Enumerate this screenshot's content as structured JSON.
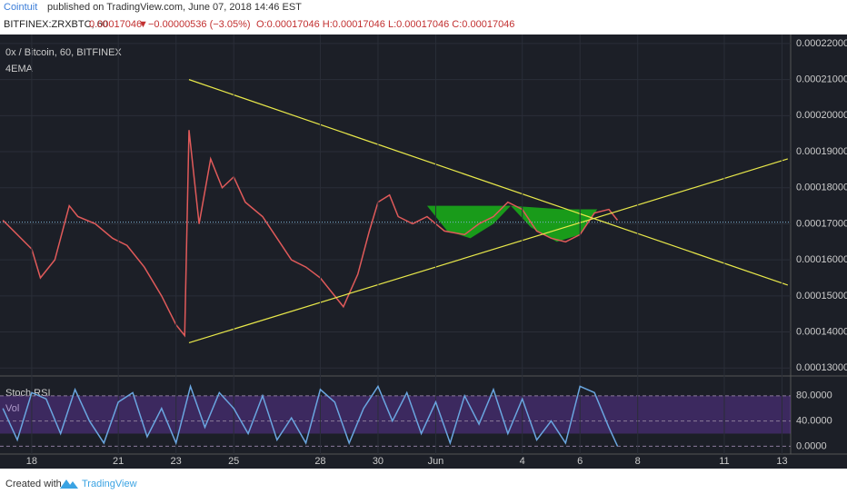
{
  "header": {
    "author": "Cointuit",
    "published": "published on TradingView.com, June 07, 2018 14:46 EST",
    "symbol": "BITFINEX:ZRXBTC, 60",
    "arrow": "▼",
    "change": "−0.00000536 (−3.05%)",
    "ohlc": "O:0.00017046 H:0.00017046 L:0.00017046 C:0.00017046"
  },
  "footer": {
    "created": "Created with",
    "brand": "TradingView"
  },
  "chart_data": [
    {
      "type": "line",
      "title": "0x / Bitcoin, 60, BITFINEX",
      "subtitle": "4EMA",
      "color": "#e05a5a",
      "x": [
        -1,
        0,
        0.3,
        0.8,
        1.3,
        1.6,
        2.2,
        2.8,
        3.3,
        3.9,
        4.5,
        5.0,
        5.3,
        5.45,
        5.8,
        6.2,
        6.6,
        7.0,
        7.4,
        8.0,
        8.5,
        9.0,
        9.5,
        10.0,
        10.5,
        10.8,
        11.3,
        11.7,
        12.0,
        12.4,
        12.7,
        13.2,
        13.7,
        14.3,
        15.0,
        15.5,
        16.0,
        16.5,
        17.0,
        17.5,
        18.0,
        18.5,
        19.0,
        19.5,
        20.0,
        20.3
      ],
      "values": [
        0.000171,
        0.000163,
        0.000155,
        0.00016,
        0.000175,
        0.000172,
        0.00017,
        0.000166,
        0.000164,
        0.000158,
        0.00015,
        0.000142,
        0.000139,
        0.000196,
        0.00017,
        0.000188,
        0.00018,
        0.000183,
        0.000176,
        0.000172,
        0.000166,
        0.00016,
        0.000158,
        0.000155,
        0.00015,
        0.000147,
        0.000156,
        0.000168,
        0.000176,
        0.000178,
        0.000172,
        0.00017,
        0.000172,
        0.000168,
        0.000167,
        0.00017,
        0.000172,
        0.000176,
        0.000174,
        0.000168,
        0.000166,
        0.000165,
        0.000167,
        0.000173,
        0.000174,
        0.000171
      ],
      "last_price": 0.00017046,
      "xlim": [
        -1.1,
        26.3
      ],
      "ylim": [
        0.0001283,
        0.0002225
      ],
      "yticks": [
        {
          "value": 0.00022,
          "label": "0.00022000"
        },
        {
          "value": 0.00021,
          "label": "0.00021000"
        },
        {
          "value": 0.0002,
          "label": "0.00020000"
        },
        {
          "value": 0.00019,
          "label": "0.00019000"
        },
        {
          "value": 0.00018,
          "label": "0.00018000"
        },
        {
          "value": 0.00017,
          "label": "0.00017000"
        },
        {
          "value": 0.00016,
          "label": "0.00016000"
        },
        {
          "value": 0.00015,
          "label": "0.00015000"
        },
        {
          "value": 0.00014,
          "label": "0.00014000"
        },
        {
          "value": 0.00013,
          "label": "0.00013000"
        }
      ],
      "trendlines": [
        {
          "x": [
            5.45,
            26.2
          ],
          "y": [
            0.00021,
            0.000153
          ]
        },
        {
          "x": [
            5.45,
            26.2
          ],
          "y": [
            0.000137,
            0.000188
          ]
        }
      ],
      "highlights": [
        {
          "x": [
            13.7,
            14.4,
            15.2,
            16.0,
            16.6,
            15.6
          ],
          "y": [
            0.000175,
            0.000168,
            0.000166,
            0.00017,
            0.000175,
            0.000175
          ]
        },
        {
          "x": [
            16.6,
            17.3,
            18.2,
            19.0,
            19.6,
            18.4
          ],
          "y": [
            0.000175,
            0.000169,
            0.000165,
            0.000167,
            0.000174,
            0.000174
          ]
        }
      ]
    },
    {
      "type": "line",
      "title": "Stoch RSI",
      "subtitle": "Vol",
      "color": "#6aa6e0",
      "x": [
        -1,
        -0.5,
        0,
        0.5,
        1,
        1.5,
        2,
        2.5,
        3,
        3.5,
        4,
        4.5,
        5,
        5.5,
        6,
        6.5,
        7,
        7.5,
        8,
        8.5,
        9,
        9.5,
        10,
        10.5,
        11,
        11.5,
        12,
        12.5,
        13,
        13.5,
        14,
        14.5,
        15,
        15.5,
        16,
        16.5,
        17,
        17.5,
        18,
        18.5,
        19,
        19.5,
        20,
        20.3
      ],
      "values": [
        60,
        10,
        85,
        75,
        20,
        90,
        40,
        5,
        70,
        85,
        15,
        60,
        5,
        95,
        30,
        85,
        60,
        20,
        80,
        10,
        45,
        5,
        90,
        70,
        5,
        60,
        95,
        40,
        85,
        20,
        70,
        5,
        80,
        35,
        90,
        20,
        75,
        10,
        40,
        5,
        95,
        85,
        30,
        0
      ],
      "xlim": [
        -1.1,
        26.3
      ],
      "ylim": [
        -11,
        110
      ],
      "band": [
        20,
        80
      ],
      "yticks": [
        {
          "value": 80,
          "label": "80.0000"
        },
        {
          "value": 40,
          "label": "40.0000"
        },
        {
          "value": 0,
          "label": "0.0000"
        }
      ],
      "xticks": [
        {
          "value": 0,
          "label": "18"
        },
        {
          "value": 3,
          "label": "21"
        },
        {
          "value": 5,
          "label": "23"
        },
        {
          "value": 7,
          "label": "25"
        },
        {
          "value": 10,
          "label": "28"
        },
        {
          "value": 12,
          "label": "30"
        },
        {
          "value": 14,
          "label": "Jun"
        },
        {
          "value": 17,
          "label": "4"
        },
        {
          "value": 19,
          "label": "6"
        },
        {
          "value": 21,
          "label": "8"
        },
        {
          "value": 24,
          "label": "11"
        },
        {
          "value": 26,
          "label": "13"
        }
      ]
    }
  ]
}
